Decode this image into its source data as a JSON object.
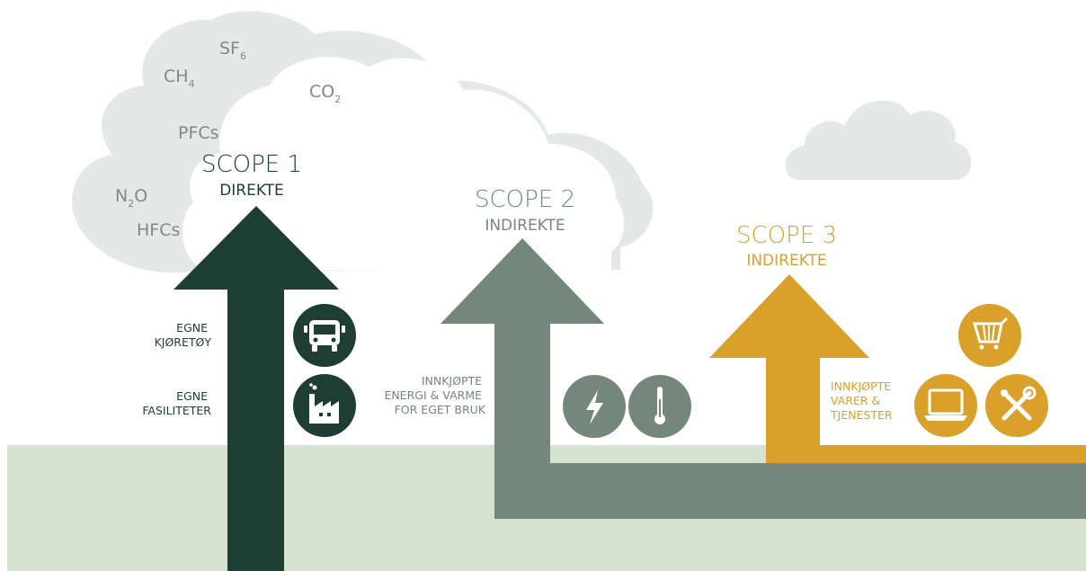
{
  "colors": {
    "scope1": "#1e3d33",
    "scope2": "#75867d",
    "scope3": "#d9a12a",
    "ground": "#d4e3cf",
    "cloud": "#e6e8e7",
    "gas_text": "#7f8a86"
  },
  "gases": {
    "sf6": {
      "base": "SF",
      "sub": "6"
    },
    "ch4": {
      "base": "CH",
      "sub": "4"
    },
    "co2": {
      "base": "CO",
      "sub": "2"
    },
    "pfcs": {
      "base": "PFCs",
      "sub": ""
    },
    "n2o": {
      "pre": "N",
      "sub": "2",
      "post": "O"
    },
    "hfcs": {
      "base": "HFCs",
      "sub": ""
    }
  },
  "scope1": {
    "title": "SCOPE 1",
    "subtitle": "DIREKTE",
    "label_vehicles": [
      "EGNE",
      "KJØRETØY"
    ],
    "label_facilities": [
      "EGNE",
      "FASILITETER"
    ],
    "icons": [
      "bus-icon",
      "factory-icon"
    ]
  },
  "scope2": {
    "title": "SCOPE 2",
    "subtitle": "INDIREKTE",
    "label": [
      "INNKJØPTE",
      "ENERGI & VARME",
      "FOR EGET BRUK"
    ],
    "icons": [
      "lightning-icon",
      "thermometer-icon"
    ]
  },
  "scope3": {
    "title": "SCOPE 3",
    "subtitle": "INDIREKTE",
    "label": [
      "INNKJØPTE",
      "VARER &",
      "TJENESTER"
    ],
    "icons": [
      "shopping-cart-icon",
      "laptop-icon",
      "tools-icon"
    ]
  }
}
